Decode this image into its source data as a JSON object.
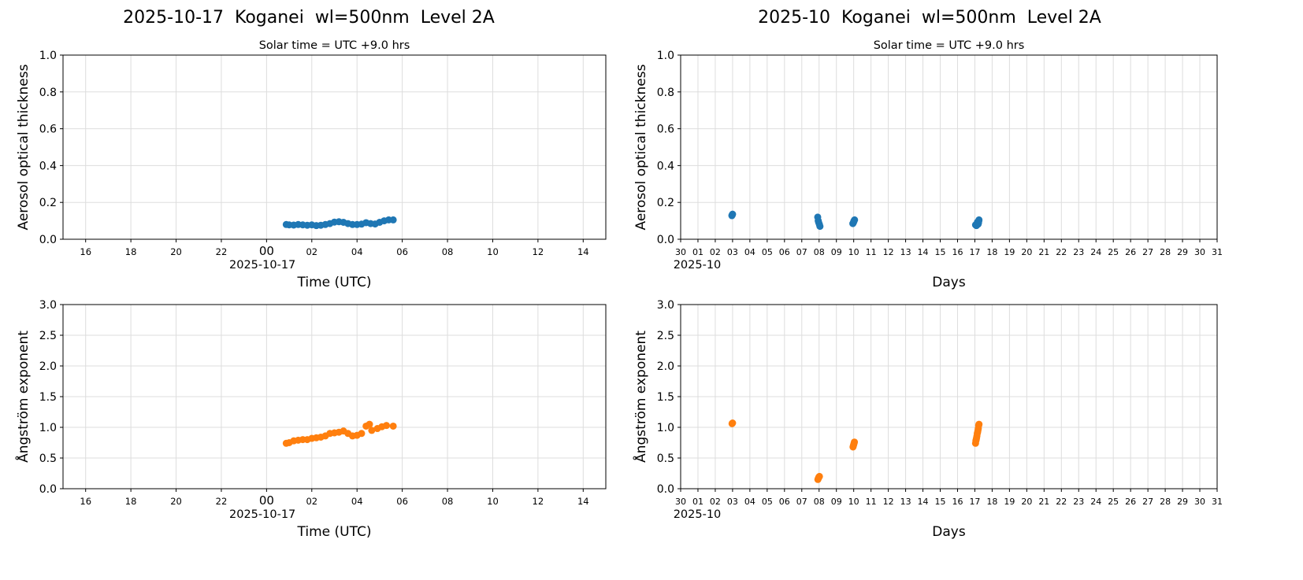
{
  "titles": {
    "left": "2025-10-17  Koganei  wl=500nm  Level 2A",
    "right": "2025-10  Koganei  wl=500nm  Level 2A"
  },
  "colors": {
    "aot": "#1f77b4",
    "angstrom": "#ff7f0e",
    "grid": "#dddddd"
  },
  "chart_data": [
    {
      "id": "daily-aot",
      "type": "scatter",
      "subtitle": "Solar time = UTC +9.0 hrs",
      "xlabel": "Time (UTC)",
      "ylabel": "Aerosol optical thickness",
      "x_offset_label": "2025-10-17",
      "x_unit": "hours from 2025-10-17 00:00 UTC",
      "xlim": [
        -9,
        15
      ],
      "ylim": [
        0,
        1.0
      ],
      "xticks": [
        [
          -8,
          "16"
        ],
        [
          -6,
          "18"
        ],
        [
          -4,
          "20"
        ],
        [
          -2,
          "22"
        ],
        [
          0,
          "00"
        ],
        [
          2,
          "02"
        ],
        [
          4,
          "04"
        ],
        [
          6,
          "06"
        ],
        [
          8,
          "08"
        ],
        [
          10,
          "10"
        ],
        [
          12,
          "12"
        ],
        [
          14,
          "14"
        ]
      ],
      "yticks": [
        [
          0,
          "0.0"
        ],
        [
          0.2,
          "0.2"
        ],
        [
          0.4,
          "0.4"
        ],
        [
          0.6,
          "0.6"
        ],
        [
          0.8,
          "0.8"
        ],
        [
          1.0,
          "1.0"
        ]
      ],
      "color": "#1f77b4",
      "x": [
        0.87,
        1.0,
        1.2,
        1.4,
        1.6,
        1.8,
        2.0,
        2.2,
        2.4,
        2.6,
        2.8,
        3.0,
        3.2,
        3.4,
        3.6,
        3.8,
        4.0,
        4.2,
        4.4,
        4.6,
        4.8,
        5.0,
        5.2,
        5.4,
        5.6
      ],
      "y": [
        0.08,
        0.078,
        0.077,
        0.08,
        0.078,
        0.076,
        0.078,
        0.074,
        0.076,
        0.08,
        0.085,
        0.093,
        0.095,
        0.092,
        0.085,
        0.08,
        0.08,
        0.082,
        0.09,
        0.085,
        0.083,
        0.092,
        0.1,
        0.105,
        0.105
      ]
    },
    {
      "id": "monthly-aot",
      "type": "scatter",
      "subtitle": "Solar time = UTC +9.0 hrs",
      "xlabel": "Days",
      "ylabel": "Aerosol optical thickness",
      "x_offset_label": "2025-10",
      "x_unit": "days since 2025-09-30",
      "xlim": [
        0,
        31
      ],
      "ylim": [
        0,
        1.0
      ],
      "xticks": [
        [
          0,
          "30"
        ],
        [
          1,
          "01"
        ],
        [
          2,
          "02"
        ],
        [
          3,
          "03"
        ],
        [
          4,
          "04"
        ],
        [
          5,
          "05"
        ],
        [
          6,
          "06"
        ],
        [
          7,
          "07"
        ],
        [
          8,
          "08"
        ],
        [
          9,
          "09"
        ],
        [
          10,
          "10"
        ],
        [
          11,
          "11"
        ],
        [
          12,
          "12"
        ],
        [
          13,
          "13"
        ],
        [
          14,
          "14"
        ],
        [
          15,
          "15"
        ],
        [
          16,
          "16"
        ],
        [
          17,
          "17"
        ],
        [
          18,
          "18"
        ],
        [
          19,
          "19"
        ],
        [
          20,
          "20"
        ],
        [
          21,
          "21"
        ],
        [
          22,
          "22"
        ],
        [
          23,
          "23"
        ],
        [
          24,
          "24"
        ],
        [
          25,
          "25"
        ],
        [
          26,
          "26"
        ],
        [
          27,
          "27"
        ],
        [
          28,
          "28"
        ],
        [
          29,
          "29"
        ],
        [
          30,
          "30"
        ],
        [
          31,
          "31"
        ]
      ],
      "yticks": [
        [
          0,
          "0.0"
        ],
        [
          0.2,
          "0.2"
        ],
        [
          0.4,
          "0.4"
        ],
        [
          0.6,
          "0.6"
        ],
        [
          0.8,
          "0.8"
        ],
        [
          1.0,
          "1.0"
        ]
      ],
      "color": "#1f77b4",
      "x": [
        2.96,
        2.98,
        3.0,
        7.92,
        7.95,
        7.98,
        8.02,
        8.05,
        9.95,
        9.98,
        10.0,
        10.02,
        10.05,
        17.04,
        17.07,
        17.09,
        17.11,
        17.13,
        17.15,
        17.17,
        17.19,
        17.21,
        17.23,
        17.24
      ],
      "y": [
        0.128,
        0.132,
        0.136,
        0.12,
        0.1,
        0.09,
        0.08,
        0.07,
        0.085,
        0.09,
        0.095,
        0.1,
        0.105,
        0.078,
        0.076,
        0.074,
        0.078,
        0.085,
        0.093,
        0.092,
        0.082,
        0.088,
        0.1,
        0.105
      ]
    },
    {
      "id": "daily-angstrom",
      "type": "scatter",
      "xlabel": "Time (UTC)",
      "ylabel": "Ångström exponent",
      "x_offset_label": "2025-10-17",
      "x_unit": "hours from 2025-10-17 00:00 UTC",
      "xlim": [
        -9,
        15
      ],
      "ylim": [
        0,
        3.0
      ],
      "xticks": [
        [
          -8,
          "16"
        ],
        [
          -6,
          "18"
        ],
        [
          -4,
          "20"
        ],
        [
          -2,
          "22"
        ],
        [
          0,
          "00"
        ],
        [
          2,
          "02"
        ],
        [
          4,
          "04"
        ],
        [
          6,
          "06"
        ],
        [
          8,
          "08"
        ],
        [
          10,
          "10"
        ],
        [
          12,
          "12"
        ],
        [
          14,
          "14"
        ]
      ],
      "yticks": [
        [
          0,
          "0.0"
        ],
        [
          0.5,
          "0.5"
        ],
        [
          1.0,
          "1.0"
        ],
        [
          1.5,
          "1.5"
        ],
        [
          2.0,
          "2.0"
        ],
        [
          2.5,
          "2.5"
        ],
        [
          3.0,
          "3.0"
        ]
      ],
      "color": "#ff7f0e",
      "x": [
        0.87,
        1.0,
        1.2,
        1.4,
        1.6,
        1.8,
        2.0,
        2.2,
        2.4,
        2.6,
        2.8,
        3.0,
        3.2,
        3.4,
        3.6,
        3.8,
        4.0,
        4.2,
        4.4,
        4.55,
        4.65,
        4.9,
        5.1,
        5.3,
        5.6
      ],
      "y": [
        0.74,
        0.75,
        0.78,
        0.79,
        0.8,
        0.8,
        0.82,
        0.83,
        0.84,
        0.86,
        0.9,
        0.91,
        0.92,
        0.94,
        0.9,
        0.86,
        0.87,
        0.9,
        1.02,
        1.05,
        0.95,
        0.98,
        1.01,
        1.03,
        1.02
      ]
    },
    {
      "id": "monthly-angstrom",
      "type": "scatter",
      "xlabel": "Days",
      "ylabel": "Ångström exponent",
      "x_offset_label": "2025-10",
      "x_unit": "days since 2025-09-30",
      "xlim": [
        0,
        31
      ],
      "ylim": [
        0,
        3.0
      ],
      "xticks": [
        [
          0,
          "30"
        ],
        [
          1,
          "01"
        ],
        [
          2,
          "02"
        ],
        [
          3,
          "03"
        ],
        [
          4,
          "04"
        ],
        [
          5,
          "05"
        ],
        [
          6,
          "06"
        ],
        [
          7,
          "07"
        ],
        [
          8,
          "08"
        ],
        [
          9,
          "09"
        ],
        [
          10,
          "10"
        ],
        [
          11,
          "11"
        ],
        [
          12,
          "12"
        ],
        [
          13,
          "13"
        ],
        [
          14,
          "14"
        ],
        [
          15,
          "15"
        ],
        [
          16,
          "16"
        ],
        [
          17,
          "17"
        ],
        [
          18,
          "18"
        ],
        [
          19,
          "19"
        ],
        [
          20,
          "20"
        ],
        [
          21,
          "21"
        ],
        [
          22,
          "22"
        ],
        [
          23,
          "23"
        ],
        [
          24,
          "24"
        ],
        [
          25,
          "25"
        ],
        [
          26,
          "26"
        ],
        [
          27,
          "27"
        ],
        [
          28,
          "28"
        ],
        [
          29,
          "29"
        ],
        [
          30,
          "30"
        ],
        [
          31,
          "31"
        ]
      ],
      "yticks": [
        [
          0,
          "0.0"
        ],
        [
          0.5,
          "0.5"
        ],
        [
          1.0,
          "1.0"
        ],
        [
          1.5,
          "1.5"
        ],
        [
          2.0,
          "2.0"
        ],
        [
          2.5,
          "2.5"
        ],
        [
          3.0,
          "3.0"
        ]
      ],
      "color": "#ff7f0e",
      "x": [
        2.97,
        3.0,
        7.93,
        7.96,
        7.99,
        8.02,
        9.96,
        9.98,
        10.0,
        10.02,
        10.04,
        17.04,
        17.06,
        17.08,
        17.1,
        17.12,
        17.14,
        17.16,
        17.18,
        17.2,
        17.22,
        17.24
      ],
      "y": [
        1.06,
        1.07,
        0.15,
        0.17,
        0.19,
        0.2,
        0.68,
        0.7,
        0.72,
        0.74,
        0.76,
        0.74,
        0.78,
        0.8,
        0.83,
        0.86,
        0.9,
        0.92,
        0.95,
        0.98,
        1.03,
        1.05
      ]
    }
  ]
}
